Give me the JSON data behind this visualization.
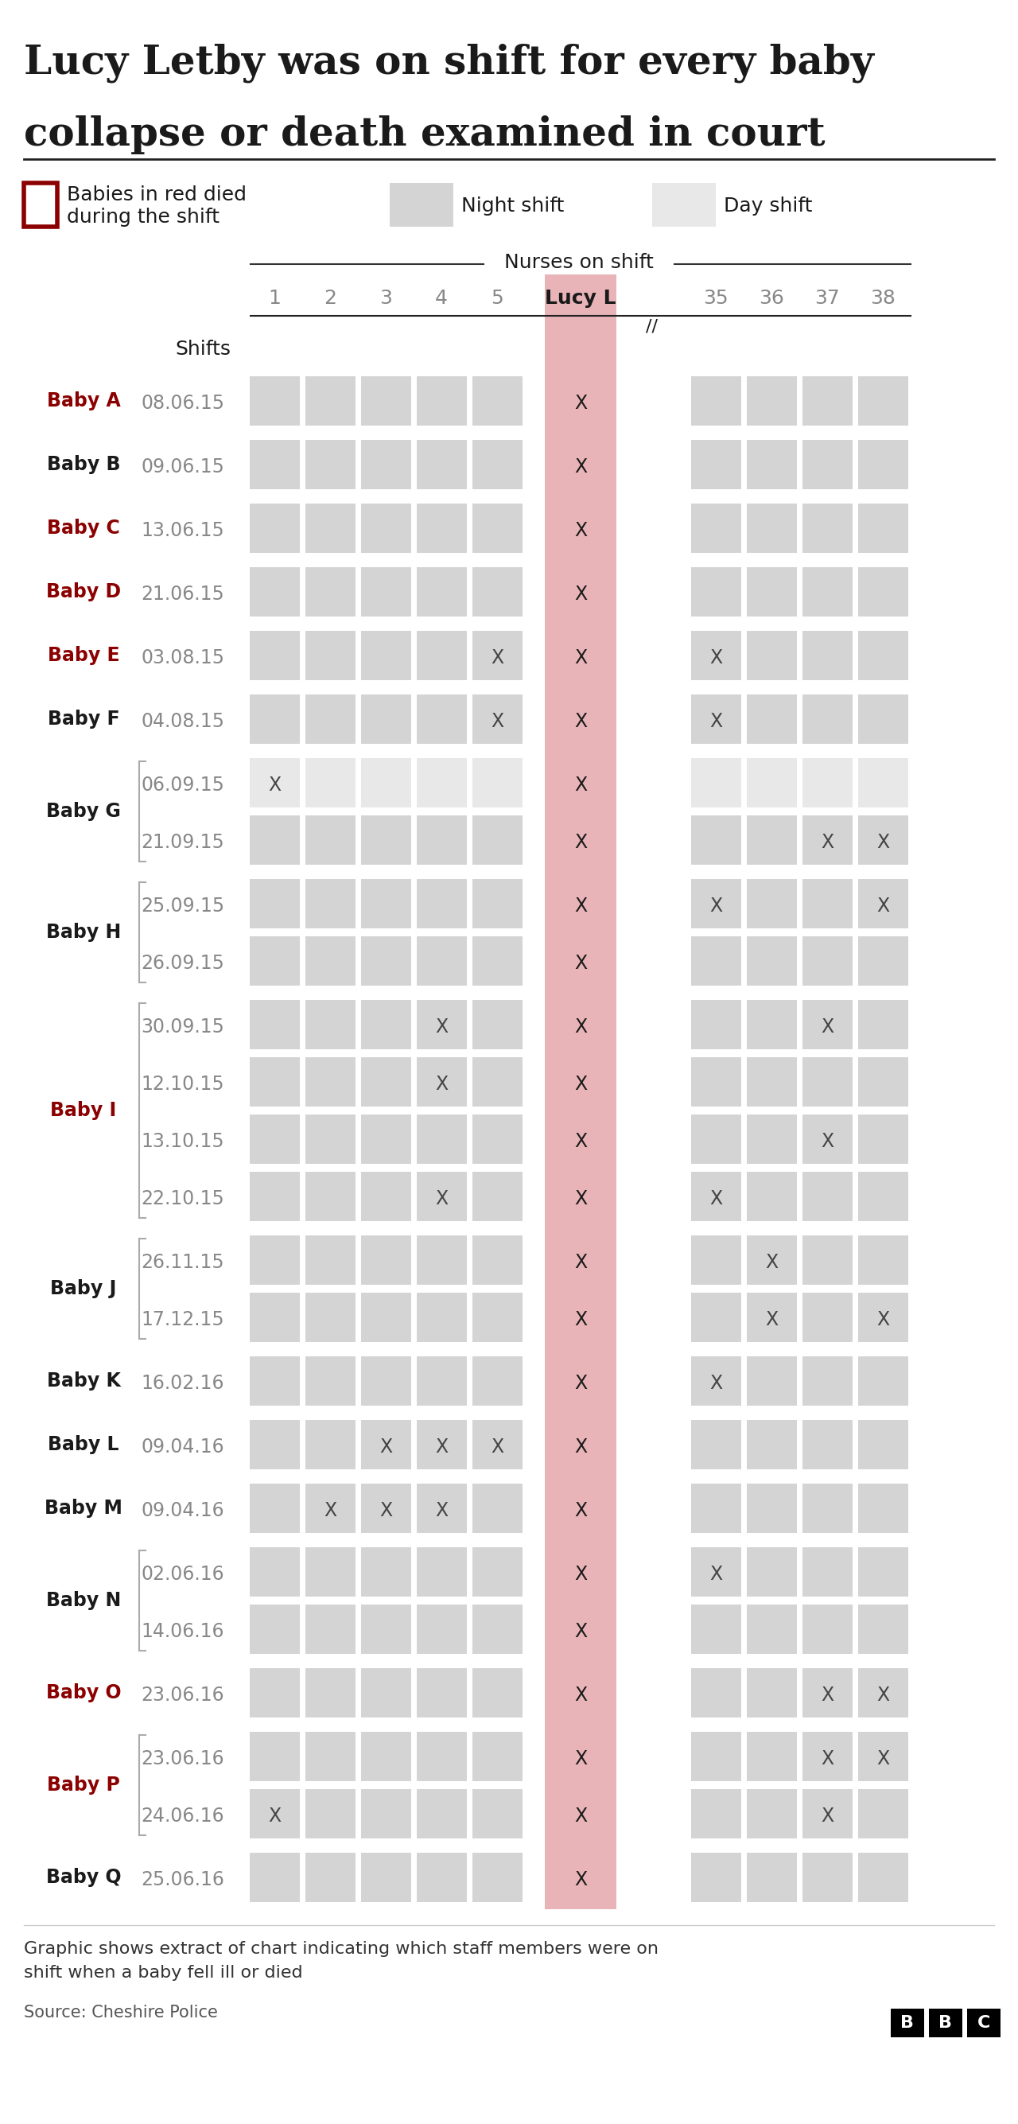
{
  "title_line1": "Lucy Letby was on shift for every baby",
  "title_line2": "collapse or death examined in court",
  "legend_red_label1": "Babies in red died",
  "legend_red_label2": "during the shift",
  "legend_night_label": "Night shift",
  "legend_day_label": "Day shift",
  "nurses_on_shift_label": "Nurses on shift",
  "shifts_label": "Shifts",
  "rows": [
    {
      "baby": "Baby A",
      "red": true,
      "date": "08.06.15",
      "shift": "night",
      "n1": 0,
      "n2": 0,
      "n3": 0,
      "n4": 0,
      "n5": 0,
      "lucy": 1,
      "n35": 0,
      "n36": 0,
      "n37": 0,
      "n38": 0
    },
    {
      "baby": "Baby B",
      "red": false,
      "date": "09.06.15",
      "shift": "night",
      "n1": 0,
      "n2": 0,
      "n3": 0,
      "n4": 0,
      "n5": 0,
      "lucy": 1,
      "n35": 0,
      "n36": 0,
      "n37": 0,
      "n38": 0
    },
    {
      "baby": "Baby C",
      "red": true,
      "date": "13.06.15",
      "shift": "night",
      "n1": 0,
      "n2": 0,
      "n3": 0,
      "n4": 0,
      "n5": 0,
      "lucy": 1,
      "n35": 0,
      "n36": 0,
      "n37": 0,
      "n38": 0
    },
    {
      "baby": "Baby D",
      "red": true,
      "date": "21.06.15",
      "shift": "night",
      "n1": 0,
      "n2": 0,
      "n3": 0,
      "n4": 0,
      "n5": 0,
      "lucy": 1,
      "n35": 0,
      "n36": 0,
      "n37": 0,
      "n38": 0
    },
    {
      "baby": "Baby E",
      "red": true,
      "date": "03.08.15",
      "shift": "night",
      "n1": 0,
      "n2": 0,
      "n3": 0,
      "n4": 0,
      "n5": 1,
      "lucy": 1,
      "n35": 1,
      "n36": 0,
      "n37": 0,
      "n38": 0
    },
    {
      "baby": "Baby F",
      "red": false,
      "date": "04.08.15",
      "shift": "night",
      "n1": 0,
      "n2": 0,
      "n3": 0,
      "n4": 0,
      "n5": 1,
      "lucy": 1,
      "n35": 1,
      "n36": 0,
      "n37": 0,
      "n38": 0
    },
    {
      "baby": "Baby G",
      "red": false,
      "date": "06.09.15",
      "shift": "day",
      "n1": 1,
      "n2": 0,
      "n3": 0,
      "n4": 0,
      "n5": 0,
      "lucy": 1,
      "n35": 0,
      "n36": 0,
      "n37": 0,
      "n38": 0
    },
    {
      "baby": "Baby G",
      "red": false,
      "date": "21.09.15",
      "shift": "night",
      "n1": 0,
      "n2": 0,
      "n3": 0,
      "n4": 0,
      "n5": 0,
      "lucy": 1,
      "n35": 0,
      "n36": 0,
      "n37": 1,
      "n38": 1
    },
    {
      "baby": "Baby H",
      "red": false,
      "date": "25.09.15",
      "shift": "night",
      "n1": 0,
      "n2": 0,
      "n3": 0,
      "n4": 0,
      "n5": 0,
      "lucy": 1,
      "n35": 1,
      "n36": 0,
      "n37": 0,
      "n38": 1
    },
    {
      "baby": "Baby H",
      "red": false,
      "date": "26.09.15",
      "shift": "night",
      "n1": 0,
      "n2": 0,
      "n3": 0,
      "n4": 0,
      "n5": 0,
      "lucy": 1,
      "n35": 0,
      "n36": 0,
      "n37": 0,
      "n38": 0
    },
    {
      "baby": "Baby I",
      "red": true,
      "date": "30.09.15",
      "shift": "night",
      "n1": 0,
      "n2": 0,
      "n3": 0,
      "n4": 1,
      "n5": 0,
      "lucy": 1,
      "n35": 0,
      "n36": 0,
      "n37": 1,
      "n38": 0
    },
    {
      "baby": "Baby I",
      "red": true,
      "date": "12.10.15",
      "shift": "night",
      "n1": 0,
      "n2": 0,
      "n3": 0,
      "n4": 1,
      "n5": 0,
      "lucy": 1,
      "n35": 0,
      "n36": 0,
      "n37": 0,
      "n38": 0
    },
    {
      "baby": "Baby I",
      "red": true,
      "date": "13.10.15",
      "shift": "night",
      "n1": 0,
      "n2": 0,
      "n3": 0,
      "n4": 0,
      "n5": 0,
      "lucy": 1,
      "n35": 0,
      "n36": 0,
      "n37": 1,
      "n38": 0
    },
    {
      "baby": "Baby I",
      "red": true,
      "date": "22.10.15",
      "shift": "night",
      "n1": 0,
      "n2": 0,
      "n3": 0,
      "n4": 1,
      "n5": 0,
      "lucy": 1,
      "n35": 1,
      "n36": 0,
      "n37": 0,
      "n38": 0
    },
    {
      "baby": "Baby J",
      "red": false,
      "date": "26.11.15",
      "shift": "night",
      "n1": 0,
      "n2": 0,
      "n3": 0,
      "n4": 0,
      "n5": 0,
      "lucy": 1,
      "n35": 0,
      "n36": 1,
      "n37": 0,
      "n38": 0
    },
    {
      "baby": "Baby J",
      "red": false,
      "date": "17.12.15",
      "shift": "night",
      "n1": 0,
      "n2": 0,
      "n3": 0,
      "n4": 0,
      "n5": 0,
      "lucy": 1,
      "n35": 0,
      "n36": 1,
      "n37": 0,
      "n38": 1
    },
    {
      "baby": "Baby K",
      "red": false,
      "date": "16.02.16",
      "shift": "night",
      "n1": 0,
      "n2": 0,
      "n3": 0,
      "n4": 0,
      "n5": 0,
      "lucy": 1,
      "n35": 1,
      "n36": 0,
      "n37": 0,
      "n38": 0
    },
    {
      "baby": "Baby L",
      "red": false,
      "date": "09.04.16",
      "shift": "night",
      "n1": 0,
      "n2": 0,
      "n3": 1,
      "n4": 1,
      "n5": 1,
      "lucy": 1,
      "n35": 0,
      "n36": 0,
      "n37": 0,
      "n38": 0
    },
    {
      "baby": "Baby M",
      "red": false,
      "date": "09.04.16",
      "shift": "night",
      "n1": 0,
      "n2": 1,
      "n3": 1,
      "n4": 1,
      "n5": 0,
      "lucy": 1,
      "n35": 0,
      "n36": 0,
      "n37": 0,
      "n38": 0
    },
    {
      "baby": "Baby N",
      "red": false,
      "date": "02.06.16",
      "shift": "night",
      "n1": 0,
      "n2": 0,
      "n3": 0,
      "n4": 0,
      "n5": 0,
      "lucy": 1,
      "n35": 1,
      "n36": 0,
      "n37": 0,
      "n38": 0
    },
    {
      "baby": "Baby N",
      "red": false,
      "date": "14.06.16",
      "shift": "night",
      "n1": 0,
      "n2": 0,
      "n3": 0,
      "n4": 0,
      "n5": 0,
      "lucy": 1,
      "n35": 0,
      "n36": 0,
      "n37": 0,
      "n38": 0
    },
    {
      "baby": "Baby O",
      "red": true,
      "date": "23.06.16",
      "shift": "night",
      "n1": 0,
      "n2": 0,
      "n3": 0,
      "n4": 0,
      "n5": 0,
      "lucy": 1,
      "n35": 0,
      "n36": 0,
      "n37": 1,
      "n38": 1
    },
    {
      "baby": "Baby P",
      "red": true,
      "date": "23.06.16",
      "shift": "night",
      "n1": 0,
      "n2": 0,
      "n3": 0,
      "n4": 0,
      "n5": 0,
      "lucy": 1,
      "n35": 0,
      "n36": 0,
      "n37": 1,
      "n38": 1
    },
    {
      "baby": "Baby P",
      "red": true,
      "date": "24.06.16",
      "shift": "night",
      "n1": 1,
      "n2": 0,
      "n3": 0,
      "n4": 0,
      "n5": 0,
      "lucy": 1,
      "n35": 0,
      "n36": 0,
      "n37": 1,
      "n38": 0
    },
    {
      "baby": "Baby Q",
      "red": false,
      "date": "25.06.16",
      "shift": "night",
      "n1": 0,
      "n2": 0,
      "n3": 0,
      "n4": 0,
      "n5": 0,
      "lucy": 1,
      "n35": 0,
      "n36": 0,
      "n37": 0,
      "n38": 0
    }
  ],
  "baby_groups": [
    {
      "baby": "Baby A",
      "red": true,
      "rows": [
        0
      ]
    },
    {
      "baby": "Baby B",
      "red": false,
      "rows": [
        1
      ]
    },
    {
      "baby": "Baby C",
      "red": true,
      "rows": [
        2
      ]
    },
    {
      "baby": "Baby D",
      "red": true,
      "rows": [
        3
      ]
    },
    {
      "baby": "Baby E",
      "red": true,
      "rows": [
        4
      ]
    },
    {
      "baby": "Baby F",
      "red": false,
      "rows": [
        5
      ]
    },
    {
      "baby": "Baby G",
      "red": false,
      "rows": [
        6,
        7
      ]
    },
    {
      "baby": "Baby H",
      "red": false,
      "rows": [
        8,
        9
      ]
    },
    {
      "baby": "Baby I",
      "red": true,
      "rows": [
        10,
        11,
        12,
        13
      ]
    },
    {
      "baby": "Baby J",
      "red": false,
      "rows": [
        14,
        15
      ]
    },
    {
      "baby": "Baby K",
      "red": false,
      "rows": [
        16
      ]
    },
    {
      "baby": "Baby L",
      "red": false,
      "rows": [
        17
      ]
    },
    {
      "baby": "Baby M",
      "red": false,
      "rows": [
        18
      ]
    },
    {
      "baby": "Baby N",
      "red": false,
      "rows": [
        19,
        20
      ]
    },
    {
      "baby": "Baby O",
      "red": true,
      "rows": [
        21
      ]
    },
    {
      "baby": "Baby P",
      "red": true,
      "rows": [
        22,
        23
      ]
    },
    {
      "baby": "Baby Q",
      "red": false,
      "rows": [
        24
      ]
    }
  ],
  "night_color": "#d4d4d4",
  "day_color": "#e8e8e8",
  "lucy_col_color": "#e8b4b8",
  "red_baby_color": "#8b0000",
  "dark_color": "#1a1a1a",
  "date_color": "#888888",
  "x_color": "#444444",
  "footer_note1": "Graphic shows extract of chart indicating which staff members were on",
  "footer_note2": "shift when a baby fell ill or died",
  "source": "Source: Cheshire Police"
}
